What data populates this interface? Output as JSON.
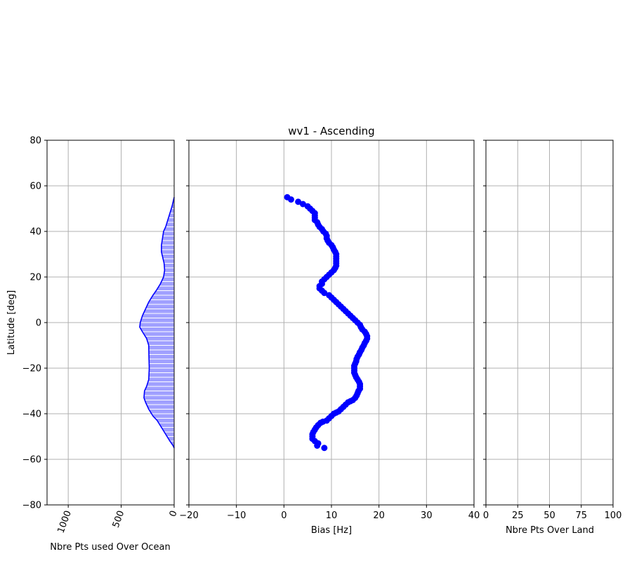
{
  "chart_data": [
    {
      "type": "area",
      "xlabel": "Nbre Pts used Over Ocean",
      "ylabel": "Latitude [deg]",
      "xlim": [
        1200,
        0
      ],
      "ylim": [
        -80,
        80
      ],
      "xticks": [
        1000,
        500,
        0
      ],
      "yticks": [
        -80,
        -60,
        -40,
        -20,
        0,
        20,
        40,
        60,
        80
      ],
      "grid": true,
      "colors": {
        "line": "#0000ff",
        "fill": "#a0a0ff"
      },
      "series": [
        {
          "points": [
            [
              0,
              -55
            ],
            [
              10,
              -54
            ],
            [
              40,
              -52
            ],
            [
              80,
              -49
            ],
            [
              120,
              -46
            ],
            [
              160,
              -43
            ],
            [
              200,
              -41
            ],
            [
              240,
              -38
            ],
            [
              270,
              -35
            ],
            [
              285,
              -33
            ],
            [
              280,
              -30
            ],
            [
              260,
              -28
            ],
            [
              240,
              -25
            ],
            [
              235,
              -20
            ],
            [
              238,
              -15
            ],
            [
              240,
              -10
            ],
            [
              260,
              -7
            ],
            [
              300,
              -4
            ],
            [
              325,
              -2
            ],
            [
              320,
              0
            ],
            [
              300,
              3
            ],
            [
              270,
              6
            ],
            [
              240,
              9
            ],
            [
              200,
              12
            ],
            [
              170,
              14
            ],
            [
              130,
              17
            ],
            [
              100,
              20
            ],
            [
              90,
              23
            ],
            [
              95,
              26
            ],
            [
              110,
              29
            ],
            [
              120,
              31
            ],
            [
              120,
              34
            ],
            [
              110,
              37
            ],
            [
              100,
              40
            ],
            [
              80,
              42
            ],
            [
              60,
              45
            ],
            [
              40,
              48
            ],
            [
              20,
              51
            ],
            [
              10,
              53
            ],
            [
              0,
              55
            ]
          ]
        }
      ]
    },
    {
      "type": "scatter",
      "title": "wv1 - Ascending",
      "xlabel": "Bias [Hz]",
      "xlim": [
        -20,
        40
      ],
      "ylim": [
        -80,
        80
      ],
      "xticks": [
        -20,
        -10,
        0,
        10,
        20,
        30,
        40
      ],
      "yticks": [
        -80,
        -60,
        -40,
        -20,
        0,
        20,
        40,
        60,
        80
      ],
      "grid": true,
      "colors": {
        "marker": "#0000ff"
      },
      "series": [
        {
          "points": [
            [
              8.5,
              -55
            ],
            [
              7,
              -54
            ],
            [
              7.2,
              -53
            ],
            [
              6.5,
              -52
            ],
            [
              6,
              -51
            ],
            [
              6,
              -50
            ],
            [
              6,
              -49
            ],
            [
              6.2,
              -48
            ],
            [
              6.5,
              -47
            ],
            [
              6.8,
              -46
            ],
            [
              7.2,
              -45
            ],
            [
              7.7,
              -44
            ],
            [
              8.2,
              -43.5
            ],
            [
              9,
              -43
            ],
            [
              9.5,
              -42
            ],
            [
              10,
              -41
            ],
            [
              10.5,
              -40
            ],
            [
              11,
              -39.5
            ],
            [
              11.5,
              -39
            ],
            [
              12,
              -38
            ],
            [
              12.5,
              -37
            ],
            [
              13,
              -36
            ],
            [
              13.5,
              -35
            ],
            [
              14,
              -34.5
            ],
            [
              14.5,
              -34
            ],
            [
              15,
              -33
            ],
            [
              15.3,
              -32
            ],
            [
              15.5,
              -31
            ],
            [
              15.7,
              -30
            ],
            [
              16,
              -29
            ],
            [
              16,
              -28
            ],
            [
              16,
              -27
            ],
            [
              15.8,
              -26
            ],
            [
              15.5,
              -25
            ],
            [
              15.2,
              -24
            ],
            [
              15,
              -23
            ],
            [
              14.8,
              -22
            ],
            [
              14.8,
              -21
            ],
            [
              14.8,
              -20
            ],
            [
              14.8,
              -19
            ],
            [
              15,
              -18
            ],
            [
              15.2,
              -17
            ],
            [
              15.3,
              -16
            ],
            [
              15.5,
              -15
            ],
            [
              15.8,
              -14
            ],
            [
              16,
              -13
            ],
            [
              16.3,
              -12
            ],
            [
              16.5,
              -11
            ],
            [
              16.8,
              -10
            ],
            [
              17,
              -9
            ],
            [
              17.3,
              -8
            ],
            [
              17.5,
              -7
            ],
            [
              17.5,
              -6
            ],
            [
              17.3,
              -5
            ],
            [
              17,
              -4
            ],
            [
              16.5,
              -3
            ],
            [
              16.2,
              -2
            ],
            [
              16,
              -1
            ],
            [
              15.5,
              0
            ],
            [
              15,
              1
            ],
            [
              14.5,
              2
            ],
            [
              14,
              3
            ],
            [
              13.5,
              4
            ],
            [
              13,
              5
            ],
            [
              12.5,
              6
            ],
            [
              12,
              7
            ],
            [
              11.5,
              8
            ],
            [
              11,
              9
            ],
            [
              10.5,
              10
            ],
            [
              10,
              11
            ],
            [
              9.5,
              12
            ],
            [
              8.5,
              13
            ],
            [
              8,
              14
            ],
            [
              7.5,
              15
            ],
            [
              7.5,
              16
            ],
            [
              8,
              17
            ],
            [
              8,
              18
            ],
            [
              8.5,
              19
            ],
            [
              9,
              20
            ],
            [
              9.5,
              21
            ],
            [
              10,
              22
            ],
            [
              10.5,
              23
            ],
            [
              10.8,
              24
            ],
            [
              11,
              25
            ],
            [
              11,
              26
            ],
            [
              11,
              27
            ],
            [
              11,
              28
            ],
            [
              11,
              29
            ],
            [
              11,
              30
            ],
            [
              10.8,
              31
            ],
            [
              10.5,
              32
            ],
            [
              10.3,
              33
            ],
            [
              10,
              34
            ],
            [
              9.5,
              35
            ],
            [
              9.2,
              36
            ],
            [
              9,
              37
            ],
            [
              9,
              38
            ],
            [
              8.8,
              39
            ],
            [
              8.3,
              40
            ],
            [
              8,
              41
            ],
            [
              7.5,
              42
            ],
            [
              7.2,
              43
            ],
            [
              7,
              44
            ],
            [
              6.5,
              45
            ],
            [
              6.5,
              46
            ],
            [
              6.5,
              47
            ],
            [
              6.5,
              48
            ],
            [
              6,
              49
            ],
            [
              5.5,
              50
            ],
            [
              5,
              51
            ],
            [
              4,
              52
            ],
            [
              3,
              53
            ],
            [
              1.5,
              54
            ],
            [
              0.7,
              55
            ]
          ]
        }
      ]
    },
    {
      "type": "line",
      "xlabel": "Nbre Pts Over Land",
      "xlim": [
        0,
        100
      ],
      "ylim": [
        -80,
        80
      ],
      "xticks": [
        0,
        25,
        50,
        75,
        100
      ],
      "yticks": [
        -80,
        -60,
        -40,
        -20,
        0,
        20,
        40,
        60,
        80
      ],
      "grid": true,
      "series": []
    }
  ]
}
